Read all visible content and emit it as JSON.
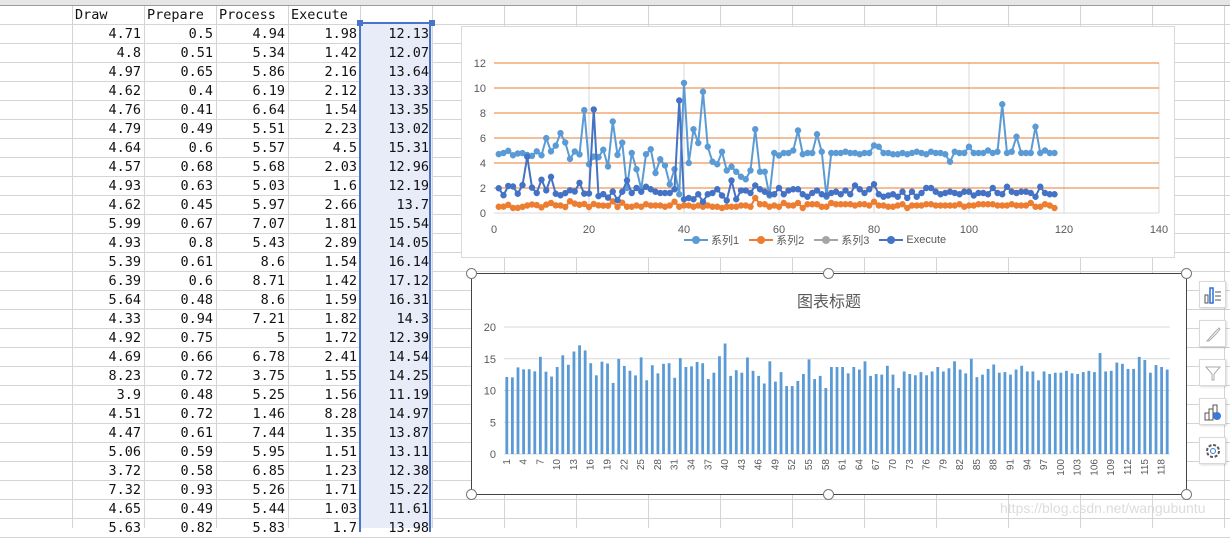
{
  "spreadsheet": {
    "headers": [
      "",
      "Draw",
      "Prepare",
      "Process",
      "Execute",
      ""
    ],
    "rows": [
      [
        "4.71",
        "0.5",
        "4.94",
        "1.98",
        "12.13"
      ],
      [
        "4.8",
        "0.51",
        "5.34",
        "1.42",
        "12.07"
      ],
      [
        "4.97",
        "0.65",
        "5.86",
        "2.16",
        "13.64"
      ],
      [
        "4.62",
        "0.4",
        "6.19",
        "2.12",
        "13.33"
      ],
      [
        "4.76",
        "0.41",
        "6.64",
        "1.54",
        "13.35"
      ],
      [
        "4.79",
        "0.49",
        "5.51",
        "2.23",
        "13.02"
      ],
      [
        "4.64",
        "0.6",
        "5.57",
        "4.5",
        "15.31"
      ],
      [
        "4.57",
        "0.68",
        "5.68",
        "2.03",
        "12.96"
      ],
      [
        "4.93",
        "0.63",
        "5.03",
        "1.6",
        "12.19"
      ],
      [
        "4.62",
        "0.45",
        "5.97",
        "2.66",
        "13.7"
      ],
      [
        "5.99",
        "0.67",
        "7.07",
        "1.81",
        "15.54"
      ],
      [
        "4.93",
        "0.8",
        "5.43",
        "2.89",
        "14.05"
      ],
      [
        "5.39",
        "0.61",
        "8.6",
        "1.54",
        "16.14"
      ],
      [
        "6.39",
        "0.6",
        "8.71",
        "1.42",
        "17.12"
      ],
      [
        "5.64",
        "0.48",
        "8.6",
        "1.59",
        "16.31"
      ],
      [
        "4.33",
        "0.94",
        "7.21",
        "1.82",
        "14.3"
      ],
      [
        "4.92",
        "0.75",
        "5",
        "1.72",
        "12.39"
      ],
      [
        "4.69",
        "0.66",
        "6.78",
        "2.41",
        "14.54"
      ],
      [
        "8.23",
        "0.72",
        "3.75",
        "1.55",
        "14.25"
      ],
      [
        "3.9",
        "0.48",
        "5.25",
        "1.56",
        "11.19"
      ],
      [
        "4.51",
        "0.72",
        "1.46",
        "8.28",
        "14.97"
      ],
      [
        "4.47",
        "0.61",
        "7.44",
        "1.35",
        "13.87"
      ],
      [
        "5.06",
        "0.59",
        "5.95",
        "1.51",
        "13.11"
      ],
      [
        "3.72",
        "0.58",
        "6.85",
        "1.23",
        "12.38"
      ],
      [
        "7.32",
        "0.93",
        "5.26",
        "1.71",
        "15.22"
      ],
      [
        "4.65",
        "0.49",
        "5.44",
        "1.03",
        "11.61"
      ],
      [
        "5.63",
        "0.82",
        "5.83",
        "1.7",
        "13.98"
      ]
    ]
  },
  "line_chart": {
    "yticks": [
      "0",
      "2",
      "4",
      "6",
      "8",
      "10",
      "12"
    ],
    "xticks": [
      "0",
      "20",
      "40",
      "60",
      "80",
      "100",
      "120",
      "140"
    ],
    "legend": [
      {
        "label": "系列1",
        "color": "#5b9bd5"
      },
      {
        "label": "系列2",
        "color": "#ed7d31"
      },
      {
        "label": "系列3",
        "color": "#a5a5a5"
      },
      {
        "label": "Execute",
        "color": "#4472c4"
      }
    ]
  },
  "bar_chart": {
    "title": "图表标题",
    "yticks": [
      "0",
      "5",
      "10",
      "15",
      "20"
    ],
    "color": "#5b9bd5"
  },
  "side_buttons": [
    {
      "name": "chart-elements-button",
      "icon": "chart-elements-icon"
    },
    {
      "name": "chart-styles-button",
      "icon": "brush-icon"
    },
    {
      "name": "chart-filters-button",
      "icon": "filter-icon"
    },
    {
      "name": "map-chart-button",
      "icon": "chart-globe-icon"
    },
    {
      "name": "chart-settings-button",
      "icon": "gear-icon"
    }
  ],
  "watermark": "https://blog.csdn.net/wangubuntu",
  "chart_data": [
    {
      "type": "line",
      "title": "",
      "xlabel": "",
      "ylabel": "",
      "xlim": [
        0,
        140
      ],
      "ylim": [
        0,
        12
      ],
      "grid": true,
      "legend_position": "bottom",
      "series": [
        {
          "name": "系列1",
          "values": [
            4.71,
            4.8,
            4.97,
            4.62,
            4.76,
            4.79,
            4.64,
            4.57,
            4.93,
            4.62,
            5.99,
            4.93,
            5.39,
            6.39,
            5.64,
            4.33,
            4.92,
            4.69,
            8.23,
            3.9,
            4.51,
            4.47,
            5.06,
            3.72,
            7.32,
            4.65,
            5.63,
            2.0,
            4.8,
            3.5,
            1.9,
            4.7,
            5.1,
            3.2,
            4.3,
            3.8,
            2.3,
            3.5,
            1.5,
            10.4,
            4.0,
            6.7,
            5.6,
            9.7,
            5.3,
            4.1,
            3.9,
            4.9,
            3.4,
            3.7,
            3.3,
            2.9,
            2.7,
            3.4,
            6.7,
            3.3,
            3.3,
            1.4,
            4.8,
            4.6,
            4.8,
            4.8,
            5.0,
            6.6,
            4.7,
            4.8,
            4.8,
            6.3,
            4.9,
            1.3,
            4.8,
            4.8,
            4.8,
            4.9,
            4.8,
            4.8,
            4.7,
            4.8,
            4.8,
            5.4,
            5.3,
            4.8,
            4.8,
            4.7,
            4.7,
            4.8,
            4.7,
            4.8,
            4.9,
            4.8,
            4.7,
            4.9,
            4.8,
            4.8,
            4.7,
            4.1,
            4.9,
            4.8,
            4.8,
            5.3,
            4.8,
            4.8,
            4.8,
            5.0,
            4.8,
            4.9,
            8.7,
            4.8,
            4.9,
            6.1,
            4.8,
            4.8,
            4.8,
            6.9,
            4.8,
            5.0,
            4.8,
            4.8
          ]
        },
        {
          "name": "系列2",
          "values": [
            0.5,
            0.51,
            0.65,
            0.4,
            0.41,
            0.49,
            0.6,
            0.68,
            0.63,
            0.45,
            0.67,
            0.8,
            0.61,
            0.6,
            0.48,
            0.94,
            0.75,
            0.66,
            0.72,
            0.48,
            0.72,
            0.61,
            0.59,
            0.58,
            0.93,
            0.49,
            0.82,
            0.5,
            0.5,
            0.6,
            0.5,
            0.7,
            0.6,
            0.6,
            0.6,
            0.5,
            0.6,
            0.9,
            0.5,
            0.6,
            0.6,
            0.5,
            0.6,
            0.5,
            0.6,
            0.5,
            0.5,
            0.4,
            0.5,
            0.5,
            0.5,
            0.6,
            0.6,
            0.5,
            1.2,
            0.7,
            0.7,
            0.5,
            0.6,
            0.5,
            0.8,
            0.6,
            0.6,
            0.8,
            0.4,
            0.7,
            0.7,
            0.7,
            0.5,
            0.5,
            0.8,
            0.7,
            0.7,
            0.7,
            0.7,
            0.6,
            0.7,
            0.7,
            0.6,
            0.9,
            0.6,
            0.6,
            0.5,
            0.5,
            0.6,
            0.7,
            0.4,
            0.6,
            0.6,
            0.6,
            0.7,
            0.7,
            0.6,
            0.6,
            0.6,
            0.6,
            0.6,
            0.7,
            0.5,
            0.6,
            0.6,
            0.7,
            0.7,
            0.7,
            0.7,
            0.6,
            0.6,
            0.6,
            0.7,
            0.6,
            0.6,
            0.6,
            0.8,
            0.5,
            0.5,
            0.7,
            0.6,
            0.4
          ]
        },
        {
          "name": "系列3",
          "values": []
        },
        {
          "name": "Execute",
          "values": [
            1.98,
            1.42,
            2.16,
            2.12,
            1.54,
            2.23,
            4.5,
            2.03,
            1.6,
            2.66,
            1.81,
            2.89,
            1.54,
            1.42,
            1.59,
            1.82,
            1.72,
            2.41,
            1.55,
            1.56,
            8.28,
            1.35,
            1.51,
            1.23,
            1.71,
            1.03,
            1.7,
            2.6,
            1.6,
            2.0,
            1.7,
            2.1,
            1.9,
            1.7,
            1.6,
            1.6,
            1.6,
            1.9,
            9.0,
            1.1,
            1.2,
            1.1,
            1.5,
            0.9,
            1.5,
            1.6,
            1.9,
            1.4,
            1.0,
            2.6,
            1.1,
            1.8,
            1.8,
            1.6,
            2.2,
            1.9,
            1.7,
            1.5,
            1.5,
            2.0,
            1.5,
            1.8,
            1.9,
            1.9,
            1.5,
            1.3,
            1.6,
            1.8,
            1.5,
            1.4,
            1.6,
            1.7,
            1.5,
            1.8,
            1.5,
            2.2,
            1.9,
            1.6,
            1.9,
            2.3,
            1.5,
            1.3,
            1.4,
            1.5,
            1.3,
            1.7,
            1.2,
            1.7,
            1.3,
            1.6,
            2.0,
            2.0,
            1.7,
            1.5,
            1.6,
            1.7,
            1.6,
            1.5,
            1.7,
            1.7,
            1.4,
            1.6,
            1.6,
            1.5,
            2.0,
            1.6,
            1.5,
            2.1,
            1.7,
            1.6,
            1.7,
            1.7,
            1.6,
            1.3,
            2.1,
            1.6,
            1.5,
            1.5
          ]
        }
      ]
    },
    {
      "type": "bar",
      "title": "图表标题",
      "xlabel": "",
      "ylabel": "",
      "ylim": [
        0,
        20
      ],
      "grid": true,
      "categories_note": "1..118",
      "tick_labels": [
        "1",
        "4",
        "7",
        "10",
        "13",
        "16",
        "19",
        "22",
        "25",
        "28",
        "31",
        "34",
        "37",
        "40",
        "43",
        "46",
        "49",
        "52",
        "55",
        "58",
        "61",
        "64",
        "67",
        "70",
        "73",
        "76",
        "79",
        "82",
        "85",
        "88",
        "91",
        "94",
        "97",
        "100",
        "103",
        "106",
        "109",
        "112",
        "115",
        "118"
      ],
      "values": [
        12.13,
        12.07,
        13.64,
        13.33,
        13.35,
        13.02,
        15.31,
        12.96,
        12.19,
        13.7,
        15.54,
        14.05,
        16.14,
        17.12,
        16.31,
        14.3,
        12.39,
        14.54,
        14.25,
        11.19,
        14.97,
        13.87,
        13.11,
        12.38,
        15.22,
        11.61,
        13.98,
        12.7,
        14.2,
        14.3,
        12.0,
        15.1,
        13.7,
        13.8,
        14.5,
        14.3,
        11.8,
        12.8,
        15.4,
        17.4,
        12.3,
        13.2,
        12.8,
        15.2,
        13.1,
        12.3,
        11.1,
        14.6,
        11.4,
        12.9,
        10.7,
        10.7,
        11.5,
        12.6,
        14.9,
        11.8,
        12.3,
        10.4,
        13.7,
        13.7,
        13.7,
        12.7,
        13.7,
        13.3,
        14.6,
        12.3,
        12.6,
        12.5,
        13.9,
        12.5,
        10.4,
        13.0,
        12.6,
        12.4,
        12.9,
        12.4,
        13.0,
        13.7,
        13.0,
        13.5,
        14.6,
        13.3,
        12.7,
        15.0,
        12.1,
        12.5,
        13.4,
        14.1,
        12.8,
        12.9,
        12.5,
        13.3,
        13.9,
        13.0,
        13.0,
        11.6,
        13.0,
        12.6,
        12.8,
        12.8,
        13.1,
        12.7,
        12.6,
        12.9,
        13.1,
        12.9,
        15.9,
        13.0,
        13.1,
        14.4,
        14.2,
        13.4,
        13.4,
        15.3,
        14.8,
        12.8,
        14.0,
        13.7,
        13.3
      ]
    }
  ]
}
